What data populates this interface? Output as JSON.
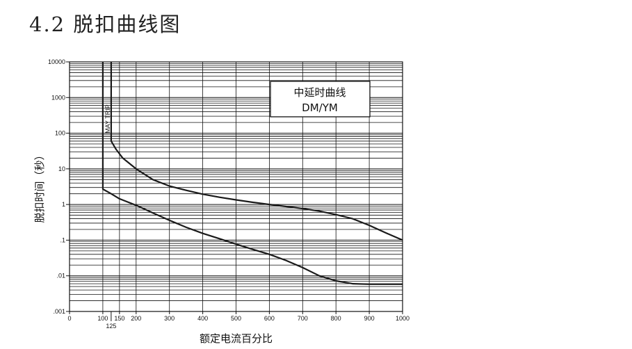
{
  "heading": "4.2 脱扣曲线图",
  "chart_data": {
    "type": "line",
    "xlabel": "额定电流百分比",
    "ylabel": "脱扣时间（秒）",
    "xlim": [
      0,
      1000
    ],
    "ylim": [
      0.001,
      10000
    ],
    "yscale": "log",
    "grid": true,
    "x_ticks": [
      {
        "value": 0,
        "label": "0"
      },
      {
        "value": 100,
        "label": "100"
      },
      {
        "value": 150,
        "label": "150"
      },
      {
        "value": 200,
        "label": "200"
      },
      {
        "value": 300,
        "label": "300"
      },
      {
        "value": 400,
        "label": "400"
      },
      {
        "value": 500,
        "label": "500"
      },
      {
        "value": 600,
        "label": "600"
      },
      {
        "value": 700,
        "label": "700"
      },
      {
        "value": 800,
        "label": "800"
      },
      {
        "value": 900,
        "label": "900"
      },
      {
        "value": 1000,
        "label": "1000"
      }
    ],
    "x_extra_tick": {
      "value": 125,
      "label": "125"
    },
    "y_ticks": [
      {
        "value": 10000,
        "label": "10000"
      },
      {
        "value": 1000,
        "label": "1000"
      },
      {
        "value": 100,
        "label": "100"
      },
      {
        "value": 10,
        "label": "10"
      },
      {
        "value": 1,
        "label": "1"
      },
      {
        "value": 0.1,
        "label": ".1"
      },
      {
        "value": 0.01,
        "label": ".01"
      },
      {
        "value": 0.001,
        "label": ".001"
      }
    ],
    "annotation": "MAY TRIP",
    "legend": {
      "lines": [
        "中延时曲线",
        "DM/YM"
      ],
      "placement": "top-right"
    },
    "series": [
      {
        "x": [
          125,
          125,
          140,
          160,
          200,
          250,
          300,
          350,
          400,
          450,
          500,
          550,
          600,
          650,
          700,
          750,
          800,
          850,
          900,
          950,
          1000
        ],
        "y": [
          10000,
          60,
          35,
          20,
          10,
          5,
          3.3,
          2.5,
          1.95,
          1.6,
          1.35,
          1.15,
          1.0,
          0.88,
          0.77,
          0.65,
          0.52,
          0.4,
          0.26,
          0.16,
          0.1
        ]
      },
      {
        "x": [
          100,
          100,
          125,
          150,
          200,
          250,
          300,
          350,
          400,
          450,
          500,
          550,
          600,
          650,
          700,
          750,
          800,
          850,
          900,
          950,
          1000
        ],
        "y": [
          10000,
          2.7,
          2.0,
          1.45,
          0.95,
          0.58,
          0.36,
          0.23,
          0.155,
          0.11,
          0.077,
          0.055,
          0.04,
          0.027,
          0.017,
          0.01,
          0.0072,
          0.006,
          0.0058,
          0.0058,
          0.0058
        ]
      }
    ]
  }
}
